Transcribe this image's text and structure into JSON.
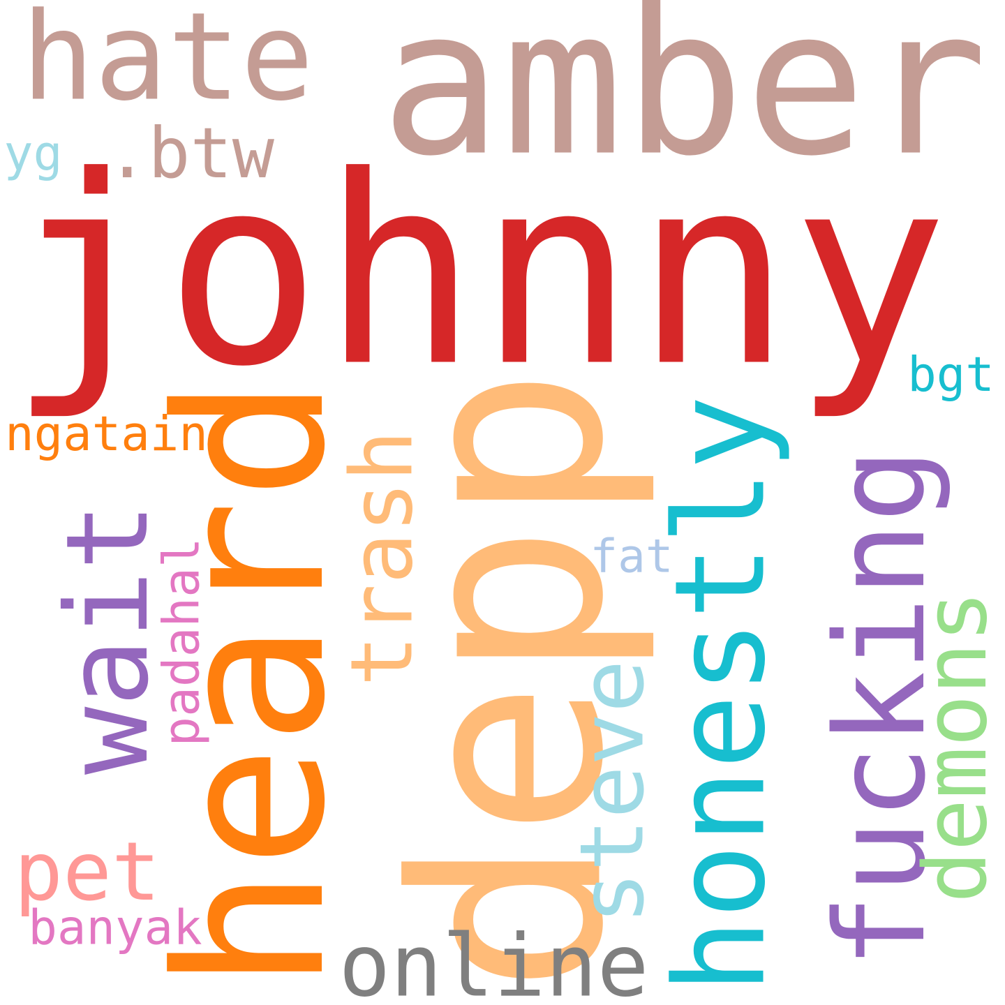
{
  "words": [
    {
      "text": "johnny",
      "color": "#d62728",
      "orientation": "horizontal"
    },
    {
      "text": "amber",
      "color": "#c49c94",
      "orientation": "horizontal"
    },
    {
      "text": "hate",
      "color": "#c49c94",
      "orientation": "horizontal"
    },
    {
      "text": ".btw",
      "color": "#c49c94",
      "orientation": "horizontal"
    },
    {
      "text": "yg",
      "color": "#9edae5",
      "orientation": "horizontal"
    },
    {
      "text": "heard",
      "color": "#ff7f0e",
      "orientation": "vertical"
    },
    {
      "text": "depp",
      "color": "#ffbb78",
      "orientation": "vertical"
    },
    {
      "text": "honestly",
      "color": "#17becf",
      "orientation": "vertical"
    },
    {
      "text": "fucking",
      "color": "#9467bd",
      "orientation": "vertical"
    },
    {
      "text": "wait",
      "color": "#9467bd",
      "orientation": "vertical"
    },
    {
      "text": "trash",
      "color": "#ffbb78",
      "orientation": "vertical"
    },
    {
      "text": "steve",
      "color": "#9edae5",
      "orientation": "vertical"
    },
    {
      "text": "demons",
      "color": "#98df8a",
      "orientation": "vertical"
    },
    {
      "text": "padahal",
      "color": "#e377c2",
      "orientation": "vertical"
    },
    {
      "text": "ngatain",
      "color": "#ff7f0e",
      "orientation": "horizontal"
    },
    {
      "text": "bgt",
      "color": "#17becf",
      "orientation": "horizontal"
    },
    {
      "text": "fat",
      "color": "#aec7e8",
      "orientation": "horizontal"
    },
    {
      "text": "pet",
      "color": "#ff9896",
      "orientation": "horizontal"
    },
    {
      "text": "banyak",
      "color": "#e377c2",
      "orientation": "horizontal"
    },
    {
      "text": "online",
      "color": "#7f7f7f",
      "orientation": "horizontal"
    }
  ]
}
